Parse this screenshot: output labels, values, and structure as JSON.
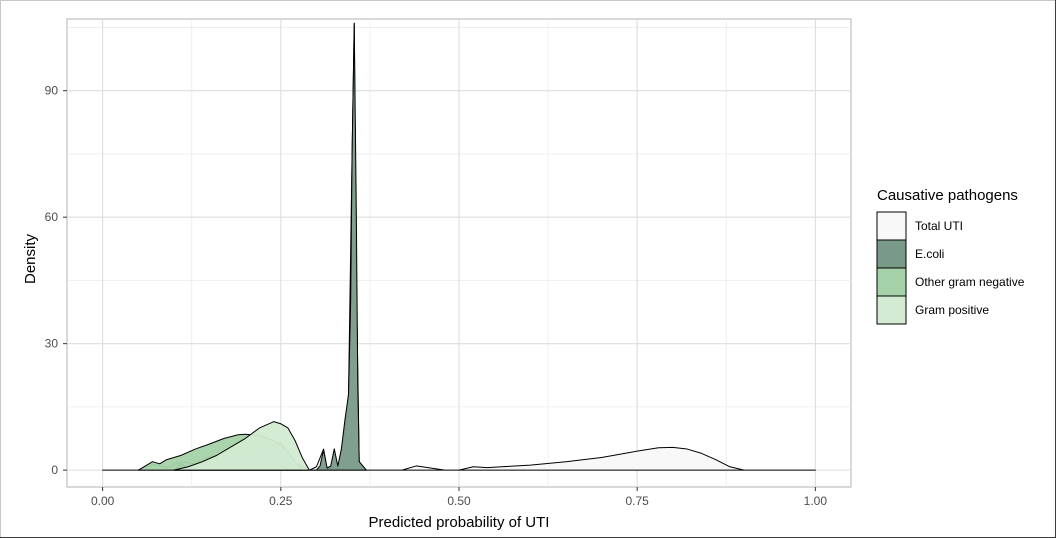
{
  "chart_data": {
    "type": "area",
    "subtype": "density",
    "xlabel": "Predicted probability of UTI",
    "ylabel": "Density",
    "xlim": [
      -0.05,
      1.05
    ],
    "ylim": [
      -4,
      107
    ],
    "x_ticks": [
      0,
      0.25,
      0.5,
      0.75,
      1.0
    ],
    "x_tick_labels": [
      "0.00",
      "0.25",
      "0.50",
      "0.75",
      "1.00"
    ],
    "y_ticks": [
      0,
      30,
      60,
      90
    ],
    "y_tick_labels": [
      "0",
      "30",
      "60",
      "90"
    ],
    "grid": true,
    "legend": {
      "title": "Causative pathogens",
      "placement": "right",
      "entries": [
        "Total UTI",
        "E.coli",
        "Other gram negative",
        "Gram positive"
      ]
    },
    "series": [
      {
        "name": "Total UTI",
        "color": "#f8f8f8",
        "points": [
          [
            0.0,
            0
          ],
          [
            0.05,
            0
          ],
          [
            0.07,
            1.3
          ],
          [
            0.09,
            0.6
          ],
          [
            0.11,
            2.0
          ],
          [
            0.13,
            1.5
          ],
          [
            0.15,
            3.2
          ],
          [
            0.17,
            3.6
          ],
          [
            0.19,
            4.5
          ],
          [
            0.21,
            5.0
          ],
          [
            0.23,
            5.8
          ],
          [
            0.25,
            6.5
          ],
          [
            0.27,
            1.8
          ],
          [
            0.29,
            0
          ],
          [
            0.3,
            0.8
          ],
          [
            0.31,
            5.0
          ],
          [
            0.315,
            0.2
          ],
          [
            0.32,
            0.5
          ],
          [
            0.325,
            5.0
          ],
          [
            0.33,
            0.5
          ],
          [
            0.335,
            5.0
          ],
          [
            0.34,
            10
          ],
          [
            0.345,
            18
          ],
          [
            0.35,
            75
          ],
          [
            0.353,
            106
          ],
          [
            0.356,
            45
          ],
          [
            0.36,
            2
          ],
          [
            0.37,
            0
          ],
          [
            0.42,
            0
          ],
          [
            0.44,
            1.0
          ],
          [
            0.46,
            0.5
          ],
          [
            0.48,
            0
          ],
          [
            0.5,
            0
          ],
          [
            0.52,
            0.8
          ],
          [
            0.54,
            0.6
          ],
          [
            0.56,
            0.8
          ],
          [
            0.6,
            1.2
          ],
          [
            0.65,
            2.0
          ],
          [
            0.7,
            3.0
          ],
          [
            0.75,
            4.5
          ],
          [
            0.78,
            5.3
          ],
          [
            0.8,
            5.4
          ],
          [
            0.82,
            5.0
          ],
          [
            0.84,
            4.0
          ],
          [
            0.86,
            2.5
          ],
          [
            0.88,
            0.8
          ],
          [
            0.9,
            0
          ],
          [
            1.0,
            0
          ]
        ]
      },
      {
        "name": "E.coli",
        "color": "#7a9a89",
        "points": [
          [
            0.1,
            0
          ],
          [
            0.11,
            1.5
          ],
          [
            0.12,
            0.5
          ],
          [
            0.14,
            2.0
          ],
          [
            0.16,
            2.5
          ],
          [
            0.18,
            3.5
          ],
          [
            0.2,
            4.5
          ],
          [
            0.22,
            5.5
          ],
          [
            0.24,
            6.2
          ],
          [
            0.25,
            6.5
          ],
          [
            0.26,
            4.0
          ],
          [
            0.27,
            1.5
          ],
          [
            0.28,
            0
          ],
          [
            0.3,
            0
          ],
          [
            0.305,
            1.0
          ],
          [
            0.31,
            4.8
          ],
          [
            0.315,
            0.5
          ],
          [
            0.32,
            1.0
          ],
          [
            0.325,
            5.0
          ],
          [
            0.33,
            1.0
          ],
          [
            0.335,
            5.0
          ],
          [
            0.34,
            12
          ],
          [
            0.345,
            18
          ],
          [
            0.348,
            40
          ],
          [
            0.35,
            75
          ],
          [
            0.353,
            106
          ],
          [
            0.356,
            60
          ],
          [
            0.358,
            20
          ],
          [
            0.36,
            2
          ],
          [
            0.37,
            0
          ]
        ]
      },
      {
        "name": "Other gram negative",
        "color": "#a5d2a8",
        "points": [
          [
            0.05,
            0
          ],
          [
            0.06,
            1.0
          ],
          [
            0.07,
            2.0
          ],
          [
            0.08,
            1.5
          ],
          [
            0.09,
            2.5
          ],
          [
            0.11,
            3.5
          ],
          [
            0.13,
            5.0
          ],
          [
            0.15,
            6.2
          ],
          [
            0.17,
            7.5
          ],
          [
            0.19,
            8.4
          ],
          [
            0.2,
            8.5
          ],
          [
            0.22,
            8.2
          ],
          [
            0.24,
            7.0
          ],
          [
            0.26,
            4.5
          ],
          [
            0.27,
            2.0
          ],
          [
            0.28,
            0
          ]
        ]
      },
      {
        "name": "Gram positive",
        "color": "#d2ebd2",
        "points": [
          [
            0.1,
            0
          ],
          [
            0.12,
            0.8
          ],
          [
            0.14,
            2.0
          ],
          [
            0.16,
            3.5
          ],
          [
            0.18,
            5.5
          ],
          [
            0.2,
            7.5
          ],
          [
            0.22,
            10.0
          ],
          [
            0.24,
            11.5
          ],
          [
            0.25,
            11.0
          ],
          [
            0.26,
            10.0
          ],
          [
            0.27,
            7.0
          ],
          [
            0.28,
            3.0
          ],
          [
            0.29,
            0
          ]
        ]
      }
    ]
  }
}
